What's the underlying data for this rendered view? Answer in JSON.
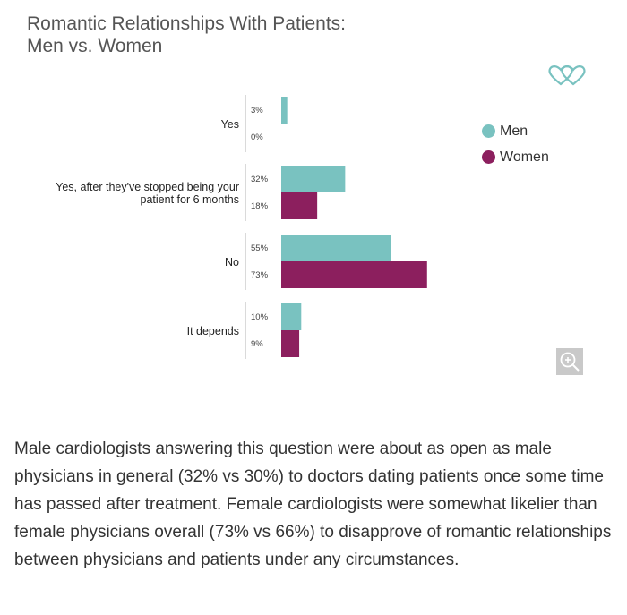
{
  "title": {
    "line1": "Romantic Relationships With Patients:",
    "line2": "Men vs. Women"
  },
  "logo_icon": "double-heart-icon",
  "zoom_icon": "zoom-in-icon",
  "chart_data": {
    "type": "bar",
    "orientation": "horizontal",
    "categories": [
      [
        "Yes"
      ],
      [
        "Yes, after they've stopped being your",
        "patient for 6 months"
      ],
      [
        "No"
      ],
      [
        "It depends"
      ]
    ],
    "series": [
      {
        "name": "Men",
        "color": "#79c2c0",
        "values": [
          3,
          32,
          55,
          10
        ],
        "labels": [
          "3%",
          "32%",
          "55%",
          "10%"
        ]
      },
      {
        "name": "Women",
        "color": "#8c1f5e",
        "values": [
          0,
          18,
          73,
          9
        ],
        "labels": [
          "0%",
          "18%",
          "73%",
          "9%"
        ]
      }
    ],
    "xlim": [
      0,
      100
    ],
    "grid": false,
    "legend": "right"
  },
  "description": "Male cardiologists answering this question were about as open as male physicians in general (32% vs 30%) to doctors dating patients once some time has passed after treatment. Female cardiologists were somewhat likelier than female physicians overall (73% vs 66%) to disapprove of romantic relationships between physicians and patients under any circumstances."
}
